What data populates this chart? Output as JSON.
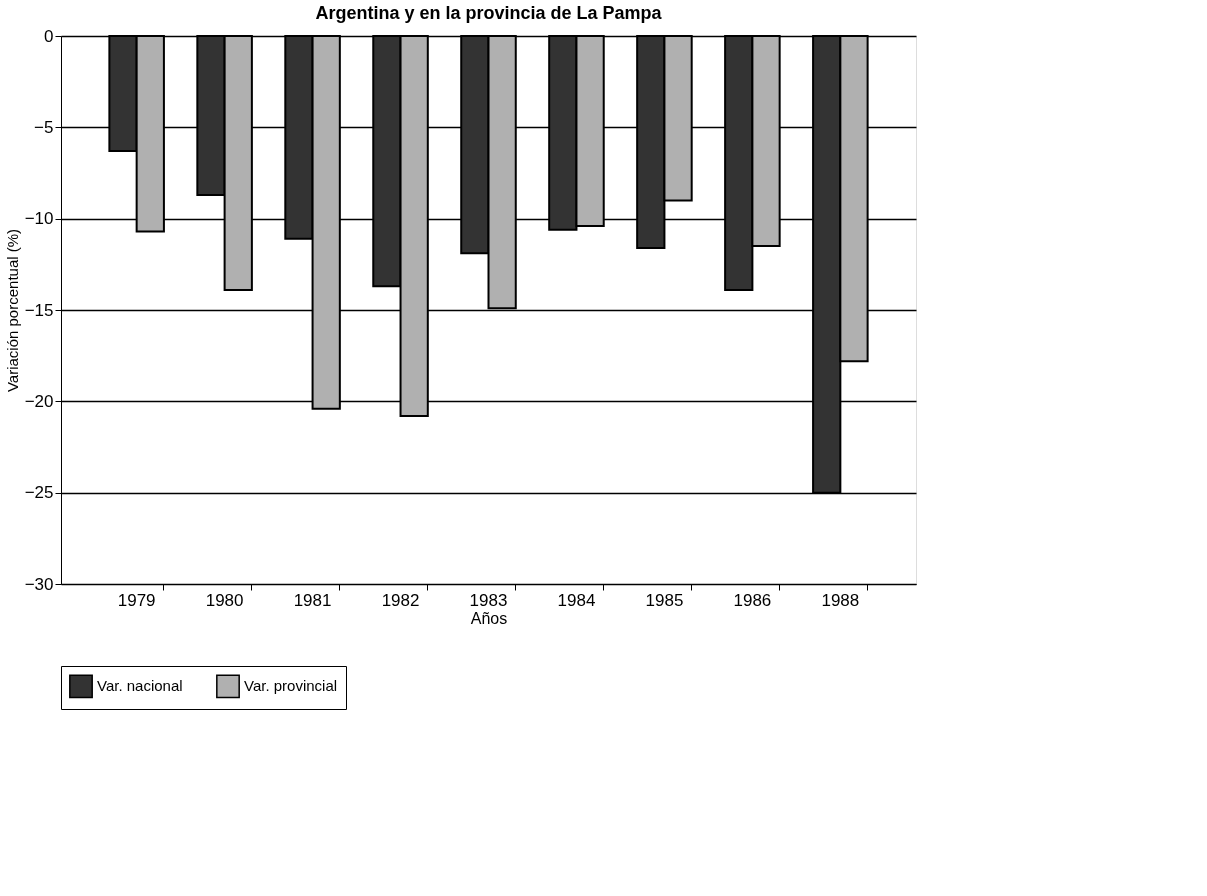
{
  "chart_data": {
    "type": "bar",
    "title": "Argentina y en la provincia de La Pampa",
    "xlabel": "Años",
    "ylabel": "Variación porcentual (%)",
    "categories": [
      "1979",
      "1980",
      "1981",
      "1982",
      "1983",
      "1984",
      "1985",
      "1986",
      "1988"
    ],
    "series": [
      {
        "name": "Var. nacional",
        "color": "#333333",
        "values": [
          -6.3,
          -8.7,
          -11.1,
          -13.7,
          -11.9,
          -10.6,
          -11.6,
          -13.9,
          -25.0
        ]
      },
      {
        "name": "Var. provincial",
        "color": "#b0b0b0",
        "values": [
          -10.7,
          -13.9,
          -20.4,
          -20.8,
          -14.9,
          -10.4,
          -9.0,
          -11.5,
          -17.8
        ]
      }
    ],
    "ylim": [
      -30,
      0
    ],
    "yticks": [
      -30,
      -25,
      -20,
      -15,
      -10,
      -5,
      0
    ],
    "grid": "y",
    "legend": "bottom"
  }
}
